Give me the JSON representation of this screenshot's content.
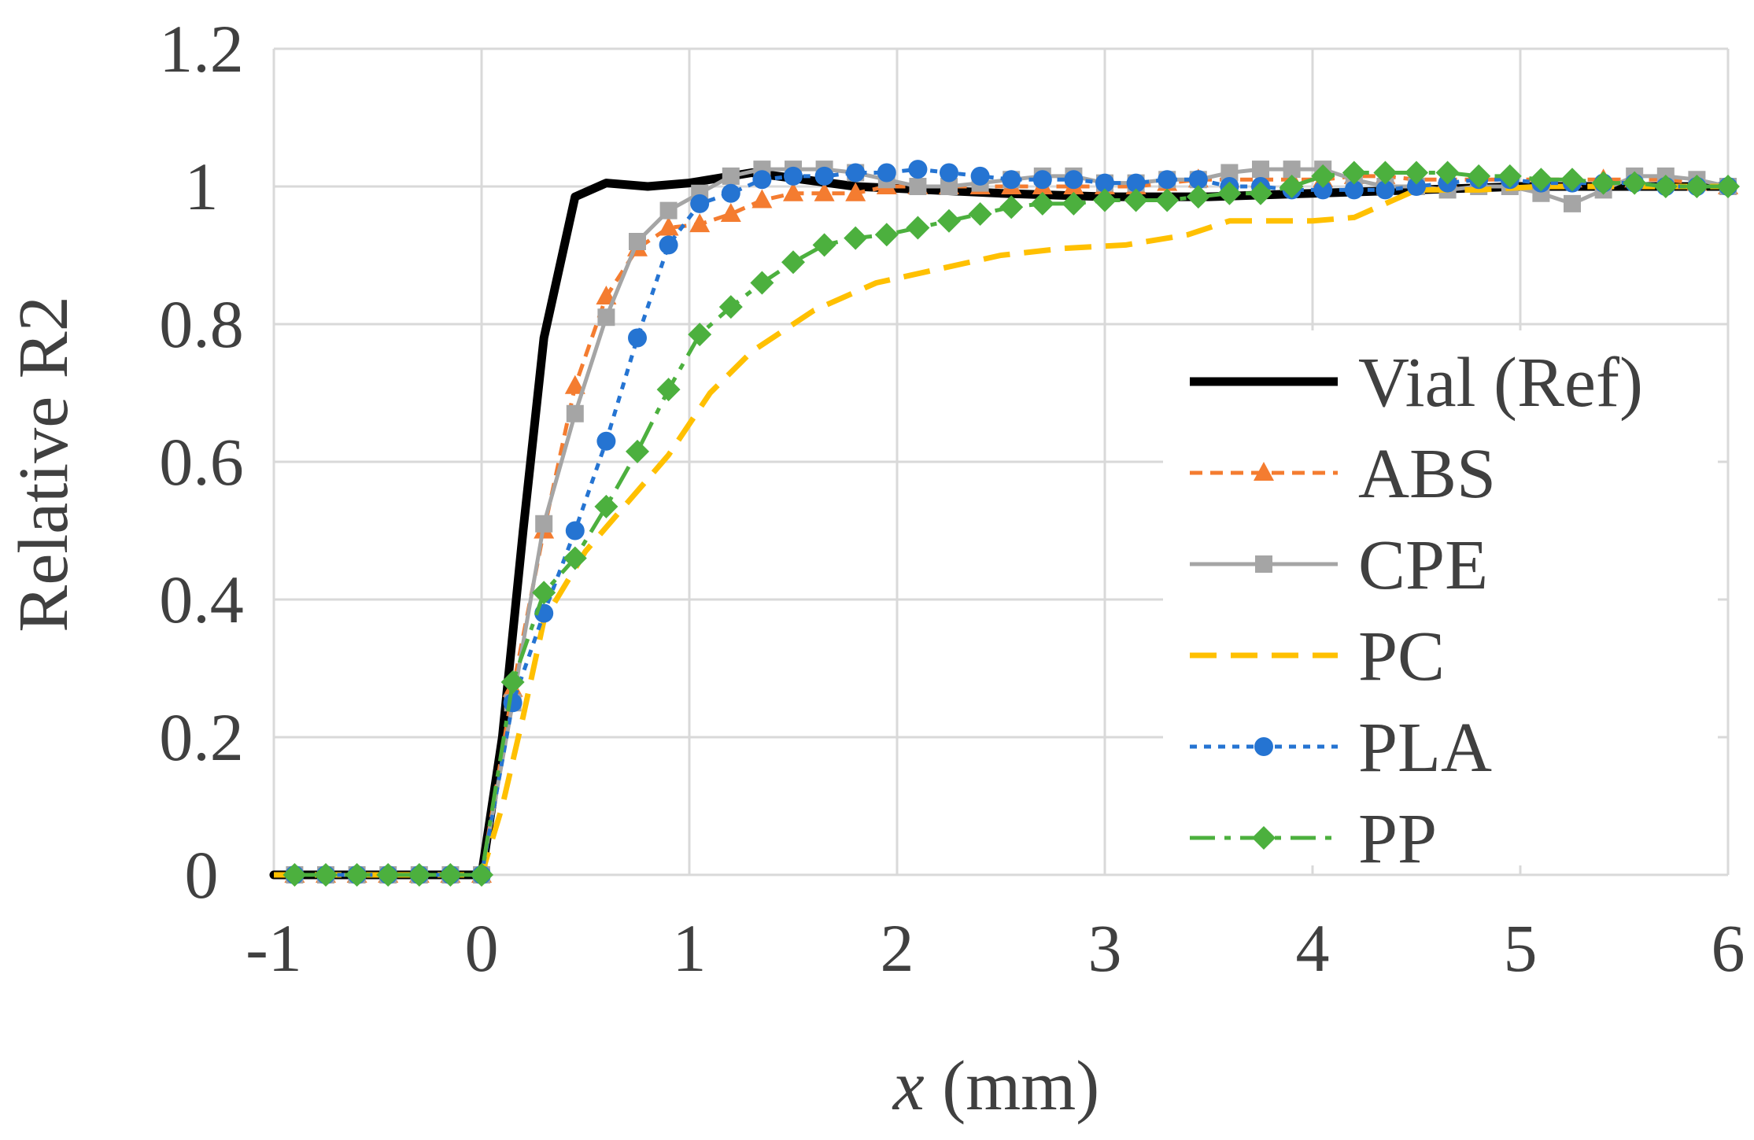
{
  "chart_data": {
    "type": "line",
    "title": "",
    "xlabel_var": "x",
    "xlabel_unit": " (mm)",
    "ylabel": "Relative R2",
    "xlim": [
      -1,
      6
    ],
    "ylim": [
      0,
      1.2
    ],
    "xticks": [
      -1,
      0,
      1,
      2,
      3,
      4,
      5,
      6
    ],
    "xtick_labels": [
      "-1",
      "0",
      "1",
      "2",
      "3",
      "4",
      "5",
      "6"
    ],
    "yticks": [
      0,
      0.2,
      0.4,
      0.6,
      0.8,
      1,
      1.2
    ],
    "ytick_labels": [
      "0",
      "0.2",
      "0.4",
      "0.6",
      "0.8",
      "1",
      "1.2"
    ],
    "grid": true,
    "legend_position": "right",
    "series": [
      {
        "name": "Vial (Ref)",
        "color": "#000000",
        "dash": "solid",
        "marker": "none",
        "width": 11,
        "x": [
          -1,
          0,
          0.1,
          0.2,
          0.3,
          0.45,
          0.6,
          0.8,
          1.0,
          1.3,
          1.8,
          2.5,
          3.0,
          3.5,
          4.0,
          4.5,
          5.0,
          5.5,
          6.0
        ],
        "y": [
          0,
          0,
          0.2,
          0.5,
          0.78,
          0.985,
          1.005,
          1.0,
          1.005,
          1.02,
          1.0,
          0.99,
          0.985,
          0.985,
          0.99,
          0.995,
          1.0,
          1.0,
          1.0
        ]
      },
      {
        "name": "ABS",
        "color": "#F47C30",
        "dash": "dash",
        "marker": "triangle",
        "width": 5,
        "x": [
          -0.9,
          -0.75,
          -0.6,
          -0.45,
          -0.3,
          -0.15,
          0,
          0.15,
          0.3,
          0.45,
          0.6,
          0.75,
          0.9,
          1.05,
          1.2,
          1.35,
          1.5,
          1.65,
          1.8,
          1.95,
          2.1,
          2.25,
          2.4,
          2.55,
          2.7,
          2.85,
          3.0,
          3.15,
          3.3,
          3.45,
          3.6,
          3.75,
          3.9,
          4.05,
          4.2,
          4.35,
          4.5,
          4.65,
          4.8,
          4.95,
          5.1,
          5.25,
          5.4,
          5.55,
          5.7,
          5.85,
          6.0
        ],
        "y": [
          0,
          0,
          0,
          0,
          0,
          0,
          0,
          0.27,
          0.5,
          0.71,
          0.84,
          0.91,
          0.94,
          0.945,
          0.96,
          0.98,
          0.99,
          0.99,
          0.99,
          1.0,
          1.0,
          1.0,
          1.0,
          1.0,
          1.0,
          1.0,
          1.0,
          1.0,
          1.005,
          1.01,
          1.01,
          1.01,
          1.01,
          1.01,
          1.015,
          1.015,
          1.01,
          1.01,
          1.01,
          1.01,
          1.01,
          1.01,
          1.01,
          1.01,
          1.01,
          1.005,
          1.0
        ]
      },
      {
        "name": "CPE",
        "color": "#A5A5A5",
        "dash": "solid",
        "marker": "square",
        "width": 5,
        "x": [
          -0.9,
          -0.75,
          -0.6,
          -0.45,
          -0.3,
          -0.15,
          0,
          0.15,
          0.3,
          0.45,
          0.6,
          0.75,
          0.9,
          1.05,
          1.2,
          1.35,
          1.5,
          1.65,
          1.8,
          1.95,
          2.1,
          2.25,
          2.4,
          2.55,
          2.7,
          2.85,
          3.0,
          3.15,
          3.3,
          3.45,
          3.6,
          3.75,
          3.9,
          4.05,
          4.2,
          4.35,
          4.5,
          4.65,
          4.8,
          4.95,
          5.1,
          5.25,
          5.4,
          5.55,
          5.7,
          5.85,
          6.0
        ],
        "y": [
          0,
          0,
          0,
          0,
          0,
          0,
          0,
          0.25,
          0.51,
          0.67,
          0.81,
          0.92,
          0.965,
          0.99,
          1.015,
          1.025,
          1.025,
          1.025,
          1.02,
          1.01,
          1.0,
          1.0,
          1.005,
          1.01,
          1.015,
          1.015,
          1.005,
          1.005,
          1.01,
          1.01,
          1.02,
          1.025,
          1.025,
          1.025,
          1.01,
          1.0,
          1.0,
          0.995,
          1.0,
          1.0,
          0.99,
          0.975,
          0.995,
          1.015,
          1.015,
          1.01,
          1.0
        ]
      },
      {
        "name": "PC",
        "color": "#FFC000",
        "dash": "longdash",
        "marker": "none",
        "width": 7,
        "x": [
          -1,
          0,
          0.1,
          0.2,
          0.3,
          0.5,
          0.7,
          0.9,
          1.1,
          1.3,
          1.6,
          1.9,
          2.2,
          2.5,
          2.8,
          3.1,
          3.4,
          3.6,
          3.8,
          4.0,
          4.2,
          4.35,
          4.5,
          4.8,
          5.1,
          5.5,
          6.0
        ],
        "y": [
          0,
          0,
          0.1,
          0.23,
          0.37,
          0.47,
          0.54,
          0.61,
          0.7,
          0.76,
          0.82,
          0.86,
          0.88,
          0.9,
          0.91,
          0.915,
          0.93,
          0.95,
          0.95,
          0.95,
          0.955,
          0.975,
          0.995,
          0.995,
          1.0,
          1.0,
          1.0
        ]
      },
      {
        "name": "PLA",
        "color": "#2574D2",
        "dash": "dot",
        "marker": "circle",
        "width": 5,
        "x": [
          -0.9,
          -0.75,
          -0.6,
          -0.45,
          -0.3,
          -0.15,
          0,
          0.15,
          0.3,
          0.45,
          0.6,
          0.75,
          0.9,
          1.05,
          1.2,
          1.35,
          1.5,
          1.65,
          1.8,
          1.95,
          2.1,
          2.25,
          2.4,
          2.55,
          2.7,
          2.85,
          3.0,
          3.15,
          3.3,
          3.45,
          3.6,
          3.75,
          3.9,
          4.05,
          4.2,
          4.35,
          4.5,
          4.65,
          4.8,
          4.95,
          5.1,
          5.25,
          5.4,
          5.55,
          5.7,
          5.85,
          6.0
        ],
        "y": [
          0,
          0,
          0,
          0,
          0,
          0,
          0,
          0.25,
          0.38,
          0.5,
          0.63,
          0.78,
          0.915,
          0.975,
          0.99,
          1.01,
          1.015,
          1.015,
          1.02,
          1.02,
          1.025,
          1.02,
          1.015,
          1.01,
          1.01,
          1.01,
          1.005,
          1.005,
          1.01,
          1.01,
          1.0,
          1.0,
          0.995,
          0.995,
          0.995,
          0.995,
          1.0,
          1.005,
          1.01,
          1.01,
          1.005,
          1.005,
          1.005,
          1.005,
          1.0,
          1.0,
          1.0
        ]
      },
      {
        "name": "PP",
        "color": "#4CB03E",
        "dash": "dashdot",
        "marker": "diamond",
        "width": 5,
        "x": [
          -0.9,
          -0.75,
          -0.6,
          -0.45,
          -0.3,
          -0.15,
          0,
          0.15,
          0.3,
          0.45,
          0.6,
          0.75,
          0.9,
          1.05,
          1.2,
          1.35,
          1.5,
          1.65,
          1.8,
          1.95,
          2.1,
          2.25,
          2.4,
          2.55,
          2.7,
          2.85,
          3.0,
          3.15,
          3.3,
          3.45,
          3.6,
          3.75,
          3.9,
          4.05,
          4.2,
          4.35,
          4.5,
          4.65,
          4.8,
          4.95,
          5.1,
          5.25,
          5.4,
          5.55,
          5.7,
          5.85,
          6.0
        ],
        "y": [
          0,
          0,
          0,
          0,
          0,
          0,
          0,
          0.28,
          0.41,
          0.46,
          0.535,
          0.615,
          0.705,
          0.785,
          0.825,
          0.86,
          0.89,
          0.915,
          0.925,
          0.93,
          0.94,
          0.95,
          0.96,
          0.97,
          0.975,
          0.975,
          0.98,
          0.98,
          0.98,
          0.985,
          0.99,
          0.99,
          1.0,
          1.015,
          1.02,
          1.02,
          1.02,
          1.02,
          1.015,
          1.015,
          1.01,
          1.01,
          1.005,
          1.005,
          1.0,
          1.0,
          1.0
        ]
      }
    ]
  }
}
